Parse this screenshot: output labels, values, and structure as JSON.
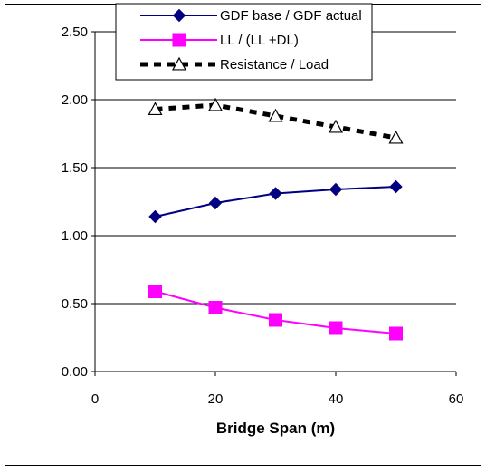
{
  "chart_data": {
    "type": "line",
    "title": "",
    "xlabel": "Bridge Span (m)",
    "ylabel": "",
    "xlim": [
      0,
      60
    ],
    "ylim": [
      0,
      2.5
    ],
    "x_ticks": [
      "0",
      "20",
      "40",
      "60"
    ],
    "y_ticks": [
      "0.00",
      "0.50",
      "1.00",
      "1.50",
      "2.00",
      "2.50"
    ],
    "grid": "horizontal",
    "legend_position": "top",
    "x": [
      10,
      20,
      30,
      40,
      50
    ],
    "series": [
      {
        "name": "GDF base / GDF actual",
        "values": [
          1.14,
          1.24,
          1.31,
          1.34,
          1.36
        ],
        "color": "#000080",
        "marker": "diamond",
        "line": "solid"
      },
      {
        "name": "LL / (LL +DL)",
        "values": [
          0.59,
          0.47,
          0.38,
          0.32,
          0.28
        ],
        "color": "#FF00FF",
        "marker": "square",
        "line": "solid"
      },
      {
        "name": "Resistance / Load",
        "values": [
          1.93,
          1.96,
          1.88,
          1.8,
          1.72
        ],
        "color": "#000000",
        "marker": "triangle-open",
        "line": "dashed"
      }
    ]
  }
}
